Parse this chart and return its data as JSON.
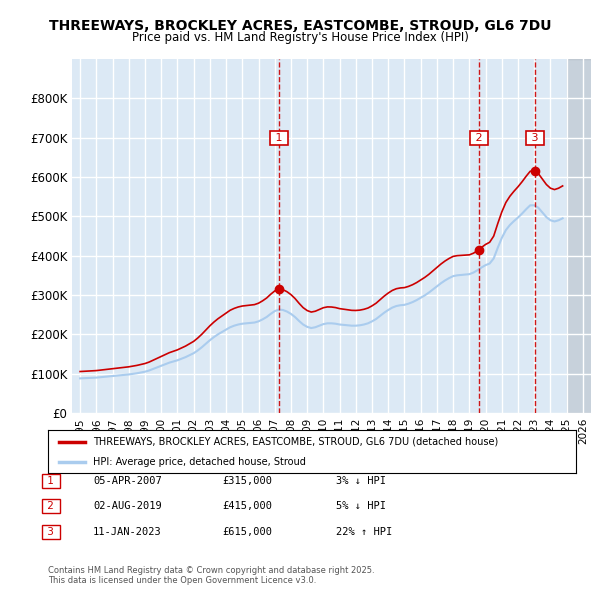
{
  "title": "THREEWAYS, BROCKLEY ACRES, EASTCOMBE, STROUD, GL6 7DU",
  "subtitle": "Price paid vs. HM Land Registry's House Price Index (HPI)",
  "ylim": [
    0,
    900000
  ],
  "yticks": [
    0,
    100000,
    200000,
    300000,
    400000,
    500000,
    600000,
    700000,
    800000
  ],
  "ytick_labels": [
    "£0",
    "£100K",
    "£200K",
    "£300K",
    "£400K",
    "£500K",
    "£600K",
    "£700K",
    "£800K"
  ],
  "xlim_start": 1994.5,
  "xlim_end": 2026.5,
  "bg_color": "#dce9f5",
  "grid_color": "#ffffff",
  "line_color_red": "#cc0000",
  "line_color_blue": "#aaccee",
  "marker_color": "#cc0000",
  "sale1_date": "05-APR-2007",
  "sale1_price": 315000,
  "sale1_x": 2007.27,
  "sale1_pct": "3%",
  "sale1_dir": "↓",
  "sale2_date": "02-AUG-2019",
  "sale2_price": 415000,
  "sale2_x": 2019.58,
  "sale2_pct": "5%",
  "sale2_dir": "↓",
  "sale3_date": "11-JAN-2023",
  "sale3_price": 615000,
  "sale3_x": 2023.03,
  "sale3_pct": "22%",
  "sale3_dir": "↑",
  "legend_label_red": "THREEWAYS, BROCKLEY ACRES, EASTCOMBE, STROUD, GL6 7DU (detached house)",
  "legend_label_blue": "HPI: Average price, detached house, Stroud",
  "footer": "Contains HM Land Registry data © Crown copyright and database right 2025.\nThis data is licensed under the Open Government Licence v3.0.",
  "hpi_years": [
    1995.0,
    1995.25,
    1995.5,
    1995.75,
    1996.0,
    1996.25,
    1996.5,
    1996.75,
    1997.0,
    1997.25,
    1997.5,
    1997.75,
    1998.0,
    1998.25,
    1998.5,
    1998.75,
    1999.0,
    1999.25,
    1999.5,
    1999.75,
    2000.0,
    2000.25,
    2000.5,
    2000.75,
    2001.0,
    2001.25,
    2001.5,
    2001.75,
    2002.0,
    2002.25,
    2002.5,
    2002.75,
    2003.0,
    2003.25,
    2003.5,
    2003.75,
    2004.0,
    2004.25,
    2004.5,
    2004.75,
    2005.0,
    2005.25,
    2005.5,
    2005.75,
    2006.0,
    2006.25,
    2006.5,
    2006.75,
    2007.0,
    2007.25,
    2007.5,
    2007.75,
    2008.0,
    2008.25,
    2008.5,
    2008.75,
    2009.0,
    2009.25,
    2009.5,
    2009.75,
    2010.0,
    2010.25,
    2010.5,
    2010.75,
    2011.0,
    2011.25,
    2011.5,
    2011.75,
    2012.0,
    2012.25,
    2012.5,
    2012.75,
    2013.0,
    2013.25,
    2013.5,
    2013.75,
    2014.0,
    2014.25,
    2014.5,
    2014.75,
    2015.0,
    2015.25,
    2015.5,
    2015.75,
    2016.0,
    2016.25,
    2016.5,
    2016.75,
    2017.0,
    2017.25,
    2017.5,
    2017.75,
    2018.0,
    2018.25,
    2018.5,
    2018.75,
    2019.0,
    2019.25,
    2019.5,
    2019.75,
    2020.0,
    2020.25,
    2020.5,
    2020.75,
    2021.0,
    2021.25,
    2021.5,
    2021.75,
    2022.0,
    2022.25,
    2022.5,
    2022.75,
    2023.0,
    2023.25,
    2023.5,
    2023.75,
    2024.0,
    2024.25,
    2024.5,
    2024.75
  ],
  "hpi_values": [
    88000,
    88500,
    89000,
    89500,
    90000,
    91000,
    92000,
    93000,
    94000,
    95000,
    96000,
    97000,
    98000,
    99500,
    101000,
    103000,
    105000,
    108000,
    112000,
    116000,
    120000,
    124000,
    128000,
    131000,
    134000,
    138000,
    142000,
    147000,
    152000,
    159000,
    167000,
    176000,
    185000,
    193000,
    200000,
    206000,
    212000,
    218000,
    222000,
    225000,
    227000,
    228000,
    229000,
    230000,
    233000,
    238000,
    244000,
    252000,
    259000,
    263000,
    262000,
    258000,
    252000,
    244000,
    234000,
    225000,
    219000,
    216000,
    218000,
    222000,
    226000,
    228000,
    228000,
    227000,
    225000,
    224000,
    223000,
    222000,
    222000,
    223000,
    225000,
    228000,
    233000,
    239000,
    247000,
    255000,
    262000,
    268000,
    272000,
    274000,
    275000,
    278000,
    282000,
    287000,
    293000,
    299000,
    306000,
    314000,
    322000,
    330000,
    337000,
    343000,
    348000,
    350000,
    351000,
    352000,
    353000,
    357000,
    363000,
    370000,
    376000,
    380000,
    393000,
    420000,
    445000,
    465000,
    478000,
    488000,
    497000,
    507000,
    518000,
    528000,
    528000,
    522000,
    510000,
    498000,
    490000,
    487000,
    490000,
    495000
  ],
  "xticks": [
    1995,
    1996,
    1997,
    1998,
    1999,
    2000,
    2001,
    2002,
    2003,
    2004,
    2005,
    2006,
    2007,
    2008,
    2009,
    2010,
    2011,
    2012,
    2013,
    2014,
    2015,
    2016,
    2017,
    2018,
    2019,
    2020,
    2021,
    2022,
    2023,
    2024,
    2025,
    2026
  ]
}
